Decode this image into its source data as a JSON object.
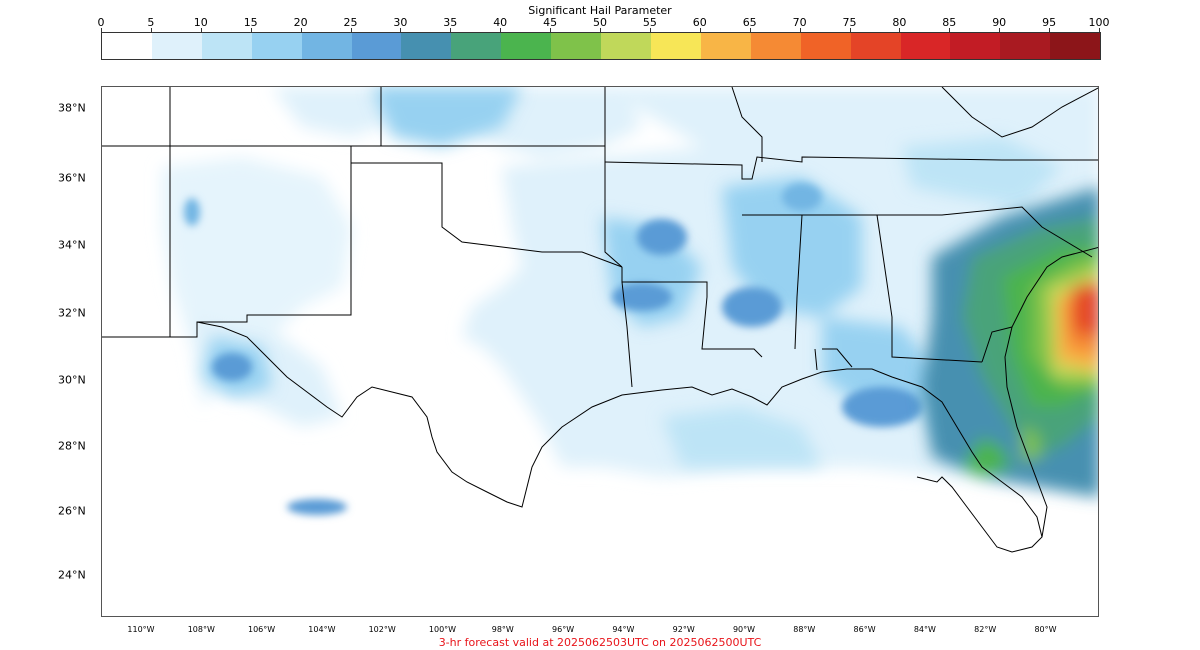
{
  "colorbar": {
    "title": "Significant Hail Parameter",
    "ticks": [
      "0",
      "5",
      "10",
      "15",
      "20",
      "25",
      "30",
      "35",
      "40",
      "45",
      "50",
      "55",
      "60",
      "65",
      "70",
      "75",
      "80",
      "85",
      "90",
      "95",
      "100"
    ],
    "colors": [
      "#ffffff",
      "#dff1fb",
      "#bde4f6",
      "#97d1f1",
      "#72b5e3",
      "#5a9bd6",
      "#4690b0",
      "#48a37a",
      "#4bb44e",
      "#7fc24a",
      "#c0d85a",
      "#f7e657",
      "#f8b546",
      "#f58a34",
      "#f06327",
      "#e44427",
      "#d92627",
      "#c21c25",
      "#a91a21",
      "#8c1519"
    ]
  },
  "map": {
    "lat_labels": [
      "38°N",
      "36°N",
      "34°N",
      "32°N",
      "30°N",
      "28°N",
      "26°N",
      "24°N"
    ],
    "lon_labels": [
      "110°W",
      "108°W",
      "106°W",
      "104°W",
      "102°W",
      "100°W",
      "98°W",
      "96°W",
      "94°W",
      "92°W",
      "90°W",
      "88°W",
      "86°W",
      "84°W",
      "82°W",
      "80°W"
    ]
  },
  "caption": "3-hr forecast valid at 2025062503UTC on 2025062500UTC"
}
